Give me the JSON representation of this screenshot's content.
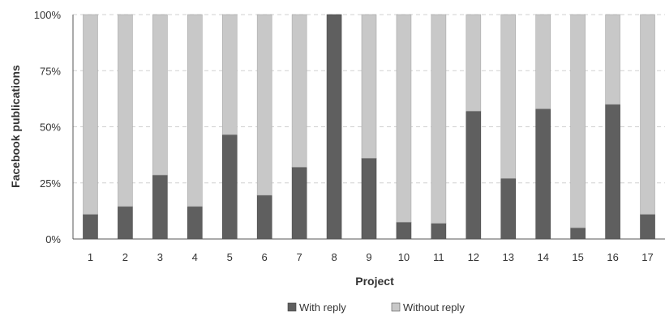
{
  "chart_data": {
    "type": "bar",
    "stacked": true,
    "orientation": "vertical",
    "xlabel": "Project",
    "ylabel": "Facebook publications",
    "ylim": [
      0,
      100
    ],
    "y_ticks": [
      "0%",
      "25%",
      "50%",
      "75%",
      "100%"
    ],
    "grid": "dashed-horizontal",
    "legend_position": "bottom",
    "categories": [
      "1",
      "2",
      "3",
      "4",
      "5",
      "6",
      "7",
      "8",
      "9",
      "10",
      "11",
      "12",
      "13",
      "14",
      "15",
      "16",
      "17"
    ],
    "series": [
      {
        "name": "With reply",
        "color": "#5f5f5f",
        "values": [
          11,
          14.5,
          28.5,
          14.5,
          46.5,
          19.5,
          32,
          100,
          36,
          7.5,
          7,
          57,
          27,
          58,
          5,
          60,
          11
        ]
      },
      {
        "name": "Without reply",
        "color": "#c8c8c8",
        "values": [
          89,
          85.5,
          71.5,
          85.5,
          53.5,
          80.5,
          68,
          0,
          64,
          92.5,
          93,
          43,
          73,
          42,
          95,
          40,
          89
        ]
      }
    ]
  }
}
